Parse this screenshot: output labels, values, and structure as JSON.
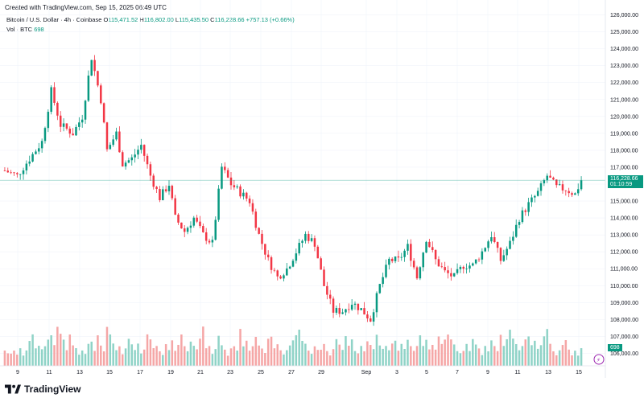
{
  "caption": "Created with TradingView.com, Sep 15, 2025 06:49 UTC",
  "legend": {
    "symbol": "Bitcoin / U.S. Dollar · 4h · Coinbase",
    "o_label": "O",
    "o": "115,471.52",
    "h_label": "H",
    "h": "116,802.00",
    "l_label": "L",
    "l": "115,435.50",
    "c_label": "C",
    "c": "116,228.66",
    "change": "+757.13 (+0.66%)",
    "vol_label": "Vol · BTC",
    "vol": "698"
  },
  "brand": "TradingView",
  "price_tag": {
    "price": "116,228.66",
    "countdown": "01:10:59"
  },
  "vol_tag": "698",
  "colors": {
    "up": "#089981",
    "down": "#f23645",
    "vol_up": "#8fd3c7",
    "vol_down": "#f5a6a6",
    "grid": "#f0f3fa"
  },
  "chart_data": {
    "type": "candlestick",
    "y_ticks": [
      "106,000.00",
      "107,000.00",
      "108,000.00",
      "109,000.00",
      "110,000.00",
      "111,000.00",
      "112,000.00",
      "113,000.00",
      "114,000.00",
      "115,000.00",
      "116,000.00",
      "117,000.00",
      "118,000.00",
      "119,000.00",
      "120,000.00",
      "121,000.00",
      "122,000.00",
      "123,000.00",
      "124,000.00",
      "125,000.00",
      "126,000.00"
    ],
    "ylim": [
      105500,
      126500
    ],
    "x_ticks": [
      "9",
      "11",
      "13",
      "15",
      "17",
      "19",
      "21",
      "23",
      "25",
      "27",
      "29",
      "Sep",
      "3",
      "5",
      "7",
      "9",
      "11",
      "13",
      "15"
    ],
    "last_price": 116228.66,
    "close_path": [
      {
        "x": 0,
        "y": 116800
      },
      {
        "x": 4,
        "y": 116500
      },
      {
        "x": 8,
        "y": 117500
      },
      {
        "x": 12,
        "y": 118500
      },
      {
        "x": 15,
        "y": 121500
      },
      {
        "x": 18,
        "y": 119500
      },
      {
        "x": 22,
        "y": 119000
      },
      {
        "x": 25,
        "y": 120000
      },
      {
        "x": 28,
        "y": 123500
      },
      {
        "x": 31,
        "y": 121000
      },
      {
        "x": 33,
        "y": 118000
      },
      {
        "x": 36,
        "y": 119000
      },
      {
        "x": 38,
        "y": 117200
      },
      {
        "x": 41,
        "y": 117500
      },
      {
        "x": 44,
        "y": 118300
      },
      {
        "x": 47,
        "y": 116500
      },
      {
        "x": 50,
        "y": 115200
      },
      {
        "x": 53,
        "y": 116000
      },
      {
        "x": 55,
        "y": 114000
      },
      {
        "x": 58,
        "y": 113200
      },
      {
        "x": 61,
        "y": 114000
      },
      {
        "x": 64,
        "y": 113000
      },
      {
        "x": 67,
        "y": 112500
      },
      {
        "x": 70,
        "y": 117000
      },
      {
        "x": 73,
        "y": 116000
      },
      {
        "x": 76,
        "y": 115500
      },
      {
        "x": 79,
        "y": 115000
      },
      {
        "x": 82,
        "y": 113000
      },
      {
        "x": 85,
        "y": 111500
      },
      {
        "x": 88,
        "y": 110500
      },
      {
        "x": 91,
        "y": 111000
      },
      {
        "x": 94,
        "y": 112000
      },
      {
        "x": 97,
        "y": 113000
      },
      {
        "x": 100,
        "y": 112500
      },
      {
        "x": 103,
        "y": 110000
      },
      {
        "x": 106,
        "y": 108500
      },
      {
        "x": 109,
        "y": 108500
      },
      {
        "x": 112,
        "y": 109000
      },
      {
        "x": 115,
        "y": 108600
      },
      {
        "x": 118,
        "y": 108000
      },
      {
        "x": 121,
        "y": 110000
      },
      {
        "x": 124,
        "y": 111500
      },
      {
        "x": 127,
        "y": 111500
      },
      {
        "x": 130,
        "y": 112300
      },
      {
        "x": 133,
        "y": 110500
      },
      {
        "x": 136,
        "y": 112800
      },
      {
        "x": 139,
        "y": 111500
      },
      {
        "x": 142,
        "y": 110800
      },
      {
        "x": 145,
        "y": 110500
      },
      {
        "x": 148,
        "y": 111200
      },
      {
        "x": 151,
        "y": 111200
      },
      {
        "x": 154,
        "y": 112000
      },
      {
        "x": 157,
        "y": 113000
      },
      {
        "x": 160,
        "y": 111500
      },
      {
        "x": 163,
        "y": 112500
      },
      {
        "x": 166,
        "y": 114000
      },
      {
        "x": 169,
        "y": 114800
      },
      {
        "x": 172,
        "y": 115500
      },
      {
        "x": 175,
        "y": 116500
      },
      {
        "x": 178,
        "y": 115800
      },
      {
        "x": 181,
        "y": 115700
      },
      {
        "x": 184,
        "y": 115400
      },
      {
        "x": 186,
        "y": 116230
      }
    ],
    "volume_profile": [
      3,
      2,
      2,
      3,
      2,
      3,
      2,
      3,
      5,
      6,
      3,
      4,
      3,
      4,
      5,
      6,
      4,
      8,
      6,
      5,
      3,
      6,
      4,
      3,
      2,
      3,
      2,
      4,
      5,
      3,
      6,
      4,
      3,
      8,
      6,
      4,
      3,
      4,
      2,
      3,
      5,
      4,
      3,
      4,
      2,
      3,
      6,
      5,
      3,
      4,
      3,
      2,
      4,
      3,
      5,
      3,
      4,
      6,
      4,
      3,
      5,
      4,
      3,
      5,
      8,
      3,
      4,
      2,
      3,
      6,
      4,
      3,
      2,
      3,
      4,
      3,
      7,
      4,
      5,
      3,
      4,
      6,
      4,
      3,
      2,
      5,
      6,
      3,
      4,
      3,
      2,
      3,
      4,
      5,
      6,
      7,
      5,
      4,
      3,
      2,
      4,
      3,
      3,
      4,
      3,
      2,
      3,
      5,
      4,
      3,
      6,
      4,
      5,
      3,
      2,
      4,
      3,
      5,
      4,
      3,
      6,
      4,
      3,
      4,
      3,
      4,
      5,
      3,
      4,
      3,
      5,
      4,
      3,
      4,
      6,
      4,
      5,
      3,
      4,
      3,
      6,
      4,
      5,
      6,
      5,
      4,
      3,
      2,
      3,
      4,
      3,
      5,
      4,
      3,
      2,
      4,
      3,
      5,
      4,
      3,
      6,
      4,
      5,
      7,
      5,
      4,
      3,
      4,
      5,
      6,
      4,
      5,
      3,
      4,
      6,
      7,
      4,
      3,
      2,
      3,
      4,
      5,
      3,
      2,
      3,
      2,
      3
    ]
  }
}
